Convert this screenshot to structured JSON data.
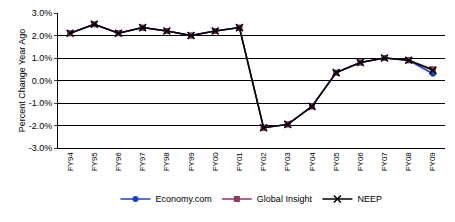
{
  "chart_data": {
    "type": "line",
    "y_label": "Percent Change Year Ago",
    "categories": [
      "FY94",
      "FY95",
      "FY96",
      "FY97",
      "FY98",
      "FY99",
      "FY00",
      "FY01",
      "FY02",
      "FY03",
      "FY04",
      "FY05",
      "FY06",
      "FY07",
      "FY08",
      "FY09"
    ],
    "series": [
      {
        "name": "Economy.com",
        "color": "#1f3fbf",
        "marker": "circle",
        "values": [
          2.1,
          2.5,
          2.1,
          2.35,
          2.2,
          2.0,
          2.2,
          2.35,
          -2.1,
          -1.95,
          -1.15,
          0.35,
          0.8,
          1.0,
          0.9,
          0.3
        ]
      },
      {
        "name": "Global Insight",
        "color": "#8b3a62",
        "marker": "square",
        "values": [
          2.1,
          2.5,
          2.1,
          2.35,
          2.2,
          2.0,
          2.2,
          2.35,
          -2.1,
          -1.95,
          -1.15,
          0.35,
          0.8,
          1.0,
          0.9,
          0.5
        ]
      },
      {
        "name": "NEEP",
        "color": "#000000",
        "marker": "x",
        "values": [
          2.1,
          2.5,
          2.1,
          2.35,
          2.2,
          2.0,
          2.2,
          2.35,
          -2.1,
          -1.95,
          -1.15,
          0.35,
          0.8,
          1.0,
          0.9,
          0.45
        ]
      }
    ],
    "ylim": [
      -3,
      3
    ],
    "yticks": [
      {
        "value": -3,
        "label": "-3.0%"
      },
      {
        "value": -2,
        "label": "-2.0%"
      },
      {
        "value": -1,
        "label": "-1.0%"
      },
      {
        "value": 0,
        "label": "0.0%"
      },
      {
        "value": 1,
        "label": "1.0%"
      },
      {
        "value": 2,
        "label": "2.0%"
      },
      {
        "value": 3,
        "label": "3.0%"
      }
    ],
    "grid": true,
    "legend": "bottom"
  }
}
